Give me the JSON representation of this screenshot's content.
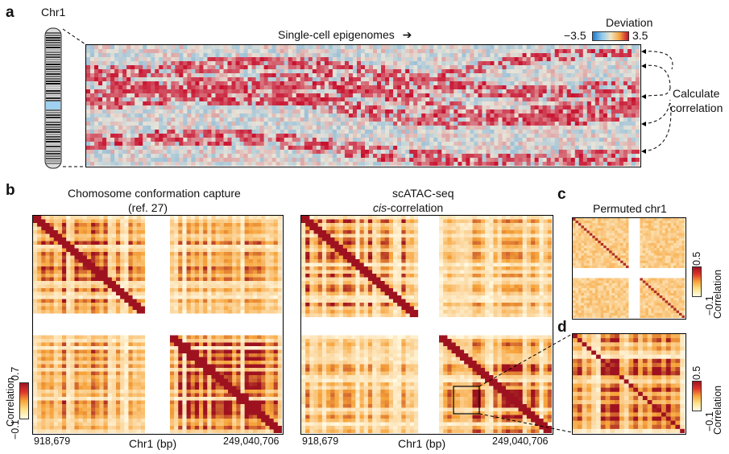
{
  "panel_a": {
    "letter": "a",
    "chrom_label": "Chr1",
    "heatmap_title": "Single-cell epigenomes",
    "arrow_glyph": "➔",
    "deviation_title": "Deviation",
    "deviation_min": "−3.5",
    "deviation_max": "3.5",
    "side_label_line1": "Calculate",
    "side_label_line2": "correlation"
  },
  "panel_b": {
    "letter": "b",
    "left_title_line1": "Chomosome conformation capture",
    "left_title_line2": "(ref. 27)",
    "right_title_line1": "scATAC-seq",
    "right_title_line2_italic": "cis",
    "right_title_line2_rest": "-correlation",
    "xlabel": "Chr1 (bp)",
    "x_start": "918,679",
    "x_end": "249,040,706",
    "cbar_title": "Correlation",
    "cbar_max": "0.7",
    "cbar_min": "−0.1"
  },
  "panel_c": {
    "letter": "c",
    "title": "Permuted chr1",
    "cbar_title": "Correlation",
    "cbar_max": "0.5",
    "cbar_min": "−0.1"
  },
  "panel_d": {
    "letter": "d",
    "cbar_title": "Correlation",
    "cbar_max": "0.5",
    "cbar_min": "−0.1"
  },
  "colors": {
    "heat_low": "#fffbe6",
    "heat_mid": "#f7a43a",
    "heat_high": "#9e1220",
    "dev_low": "#2f8fd8",
    "dev_mid": "#e8e4d8",
    "dev_high": "#c8102e"
  }
}
